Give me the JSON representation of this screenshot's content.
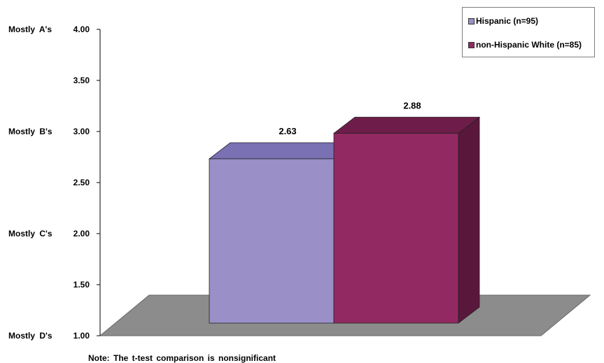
{
  "chart_data": {
    "type": "bar",
    "categories": [
      "Hispanic (n=95)",
      "non-Hispanic White (n=85)"
    ],
    "values": [
      2.63,
      2.88
    ],
    "data_labels": [
      "2.63",
      "2.88"
    ],
    "ylim": [
      1.0,
      4.0
    ],
    "y_ticks": [
      "1.00",
      "1.50",
      "2.00",
      "2.50",
      "3.00",
      "3.50",
      "4.00"
    ],
    "y_tick_values": [
      1.0,
      1.5,
      2.0,
      2.5,
      3.0,
      3.5,
      4.0
    ],
    "grade_labels": [
      {
        "text": "Mostly D's",
        "value": 1.0
      },
      {
        "text": "Mostly C's",
        "value": 2.0
      },
      {
        "text": "Mostly B's",
        "value": 3.0
      },
      {
        "text": "Mostly A's",
        "value": 4.0
      }
    ],
    "grid": false,
    "legend_position": "top-right",
    "colors": [
      "#9a8fc7",
      "#922963"
    ],
    "note": "Note: The t-test comparison is nonsignificant"
  }
}
